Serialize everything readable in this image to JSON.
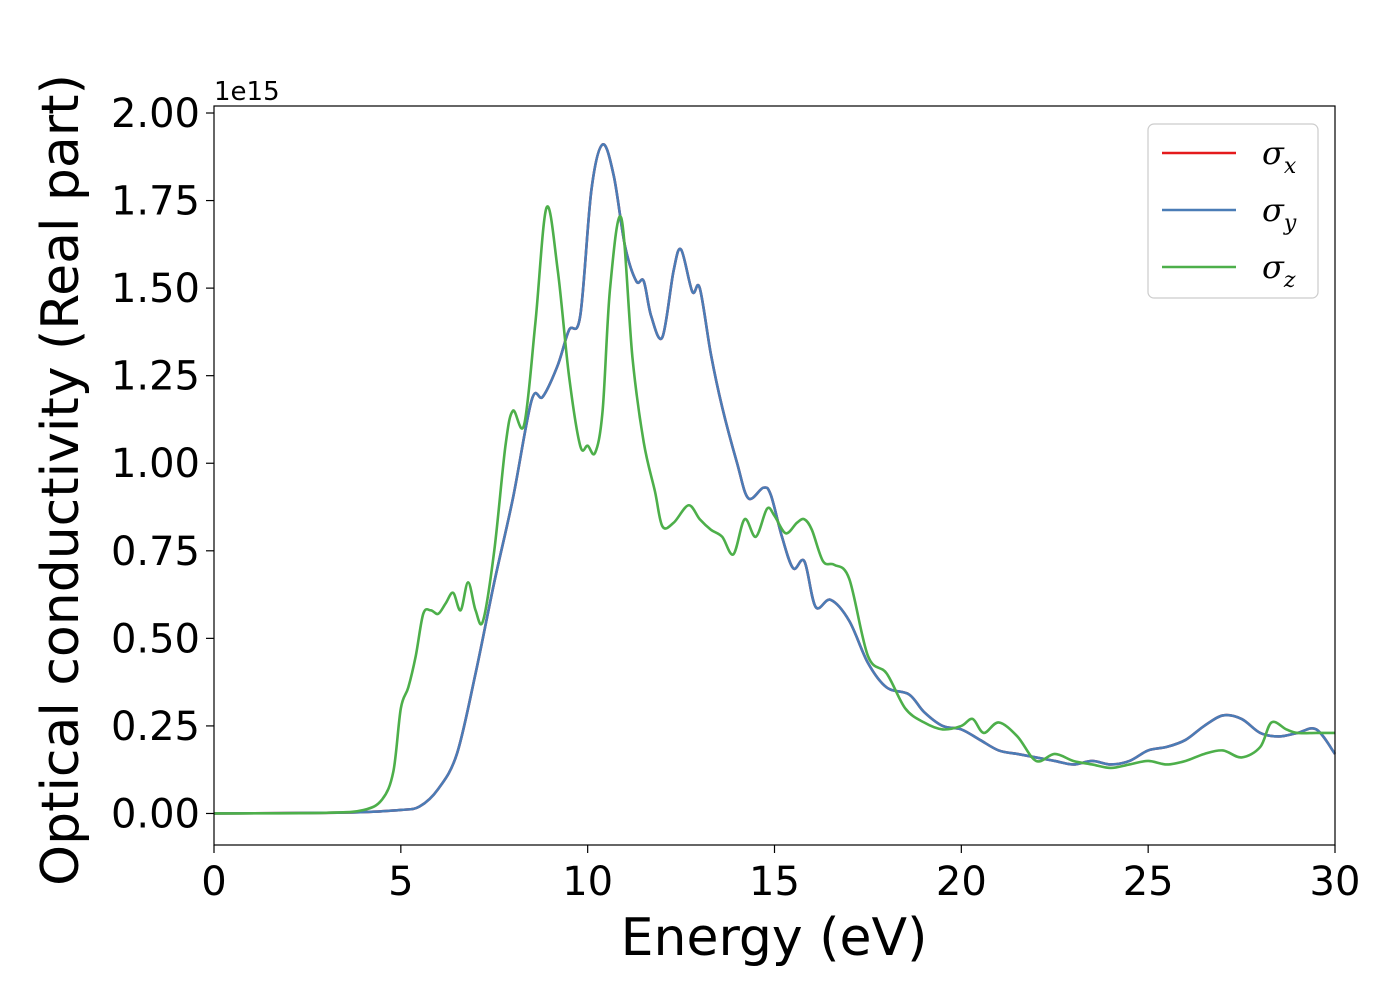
{
  "chart_data": {
    "type": "line",
    "xlabel": "Energy (eV)",
    "ylabel": "Optical conductivity (Real part)",
    "y_multiplier_label": "1e15",
    "xlim": [
      0,
      30
    ],
    "ylim": [
      -0.09,
      2.02
    ],
    "xticks": [
      0,
      5,
      10,
      15,
      20,
      25,
      30
    ],
    "xtick_labels": [
      "0",
      "5",
      "10",
      "15",
      "20",
      "25",
      "30"
    ],
    "yticks": [
      0.0,
      0.25,
      0.5,
      0.75,
      1.0,
      1.25,
      1.5,
      1.75,
      2.0
    ],
    "ytick_labels": [
      "0.00",
      "0.25",
      "0.50",
      "0.75",
      "1.00",
      "1.25",
      "1.50",
      "1.75",
      "2.00"
    ],
    "grid": false,
    "legend_position": "top-right",
    "series": [
      {
        "name": "σx",
        "symbol": "σ",
        "subscript": "x",
        "color": "#e41a1c",
        "x": [
          0,
          3,
          4,
          5,
          5.5,
          6,
          6.5,
          7,
          7.5,
          8,
          8.5,
          8.8,
          9.2,
          9.5,
          9.8,
          10.1,
          10.4,
          10.7,
          11,
          11.3,
          11.5,
          11.7,
          12.0,
          12.3,
          12.5,
          12.8,
          13.0,
          13.3,
          13.6,
          14.0,
          14.3,
          14.7,
          14.9,
          15.2,
          15.5,
          15.8,
          16.1,
          16.5,
          17.0,
          17.5,
          18.0,
          18.6,
          19.0,
          19.5,
          20.0,
          20.5,
          21.0,
          21.5,
          22.0,
          22.5,
          23.0,
          23.5,
          24.0,
          24.5,
          25.0,
          25.5,
          26.0,
          26.5,
          27.0,
          27.5,
          28.0,
          28.5,
          29.0,
          29.5,
          30.0
        ],
        "y": [
          0.0,
          0.002,
          0.004,
          0.01,
          0.02,
          0.07,
          0.17,
          0.4,
          0.66,
          0.9,
          1.18,
          1.19,
          1.28,
          1.38,
          1.42,
          1.78,
          1.91,
          1.82,
          1.62,
          1.52,
          1.52,
          1.42,
          1.36,
          1.55,
          1.61,
          1.49,
          1.5,
          1.31,
          1.16,
          1.0,
          0.9,
          0.93,
          0.91,
          0.79,
          0.7,
          0.72,
          0.59,
          0.61,
          0.55,
          0.43,
          0.36,
          0.34,
          0.29,
          0.25,
          0.24,
          0.21,
          0.18,
          0.17,
          0.16,
          0.15,
          0.14,
          0.15,
          0.14,
          0.15,
          0.18,
          0.19,
          0.21,
          0.25,
          0.28,
          0.27,
          0.23,
          0.22,
          0.23,
          0.24,
          0.17
        ]
      },
      {
        "name": "σy",
        "symbol": "σ",
        "subscript": "y",
        "color": "#4a7cb6",
        "x": [
          0,
          3,
          4,
          5,
          5.5,
          6,
          6.5,
          7,
          7.5,
          8,
          8.5,
          8.8,
          9.2,
          9.5,
          9.8,
          10.1,
          10.4,
          10.7,
          11,
          11.3,
          11.5,
          11.7,
          12.0,
          12.3,
          12.5,
          12.8,
          13.0,
          13.3,
          13.6,
          14.0,
          14.3,
          14.7,
          14.9,
          15.2,
          15.5,
          15.8,
          16.1,
          16.5,
          17.0,
          17.5,
          18.0,
          18.6,
          19.0,
          19.5,
          20.0,
          20.5,
          21.0,
          21.5,
          22.0,
          22.5,
          23.0,
          23.5,
          24.0,
          24.5,
          25.0,
          25.5,
          26.0,
          26.5,
          27.0,
          27.5,
          28.0,
          28.5,
          29.0,
          29.5,
          30.0
        ],
        "y": [
          0.0,
          0.002,
          0.004,
          0.01,
          0.02,
          0.07,
          0.17,
          0.4,
          0.66,
          0.9,
          1.18,
          1.19,
          1.28,
          1.38,
          1.42,
          1.78,
          1.91,
          1.82,
          1.62,
          1.52,
          1.52,
          1.42,
          1.36,
          1.55,
          1.61,
          1.49,
          1.5,
          1.31,
          1.16,
          1.0,
          0.9,
          0.93,
          0.91,
          0.79,
          0.7,
          0.72,
          0.59,
          0.61,
          0.55,
          0.43,
          0.36,
          0.34,
          0.29,
          0.25,
          0.24,
          0.21,
          0.18,
          0.17,
          0.16,
          0.15,
          0.14,
          0.15,
          0.14,
          0.15,
          0.18,
          0.19,
          0.21,
          0.25,
          0.28,
          0.27,
          0.23,
          0.22,
          0.23,
          0.24,
          0.17
        ]
      },
      {
        "name": "σz",
        "symbol": "σ",
        "subscript": "z",
        "color": "#4daf4a",
        "x": [
          0,
          3,
          4,
          4.5,
          4.8,
          5.0,
          5.2,
          5.4,
          5.6,
          5.8,
          6.0,
          6.2,
          6.4,
          6.6,
          6.8,
          7.0,
          7.2,
          7.5,
          7.8,
          8.0,
          8.3,
          8.6,
          8.9,
          9.2,
          9.5,
          9.8,
          10.0,
          10.2,
          10.4,
          10.6,
          10.9,
          11.2,
          11.5,
          11.8,
          12.0,
          12.3,
          12.7,
          13.0,
          13.3,
          13.6,
          13.9,
          14.2,
          14.5,
          14.8,
          15.0,
          15.3,
          15.6,
          15.8,
          16.0,
          16.3,
          16.6,
          17.0,
          17.5,
          18.0,
          18.5,
          19.0,
          19.5,
          20.0,
          20.3,
          20.6,
          21.0,
          21.5,
          22.0,
          22.5,
          23.0,
          23.5,
          24.0,
          24.5,
          25.0,
          25.5,
          26.0,
          26.5,
          27.0,
          27.5,
          28.0,
          28.3,
          28.7,
          29.0,
          29.5,
          30.0
        ],
        "y": [
          0.0,
          0.002,
          0.01,
          0.04,
          0.12,
          0.3,
          0.36,
          0.45,
          0.57,
          0.58,
          0.57,
          0.6,
          0.63,
          0.58,
          0.66,
          0.58,
          0.55,
          0.75,
          1.05,
          1.15,
          1.11,
          1.4,
          1.73,
          1.55,
          1.25,
          1.05,
          1.05,
          1.03,
          1.15,
          1.5,
          1.7,
          1.3,
          1.06,
          0.92,
          0.82,
          0.83,
          0.88,
          0.84,
          0.81,
          0.79,
          0.74,
          0.84,
          0.79,
          0.87,
          0.85,
          0.8,
          0.83,
          0.84,
          0.81,
          0.72,
          0.71,
          0.67,
          0.45,
          0.4,
          0.3,
          0.26,
          0.24,
          0.25,
          0.27,
          0.23,
          0.26,
          0.22,
          0.15,
          0.17,
          0.15,
          0.14,
          0.13,
          0.14,
          0.15,
          0.14,
          0.15,
          0.17,
          0.18,
          0.16,
          0.19,
          0.26,
          0.24,
          0.23,
          0.23,
          0.23
        ]
      }
    ]
  }
}
